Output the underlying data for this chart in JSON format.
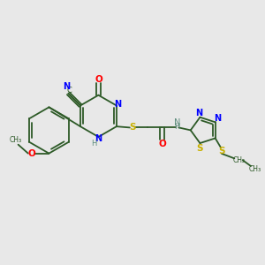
{
  "bg_color": "#e8e8e8",
  "bond_color": "#2d5a27",
  "n_color": "#0000ff",
  "o_color": "#ff0000",
  "s_color": "#c8b000",
  "nh_color": "#5a8a7a",
  "c_color": "#2d5a27",
  "figsize": [
    3.0,
    3.0
  ],
  "dpi": 100,
  "xlim": [
    0,
    12
  ],
  "ylim": [
    0,
    10
  ]
}
